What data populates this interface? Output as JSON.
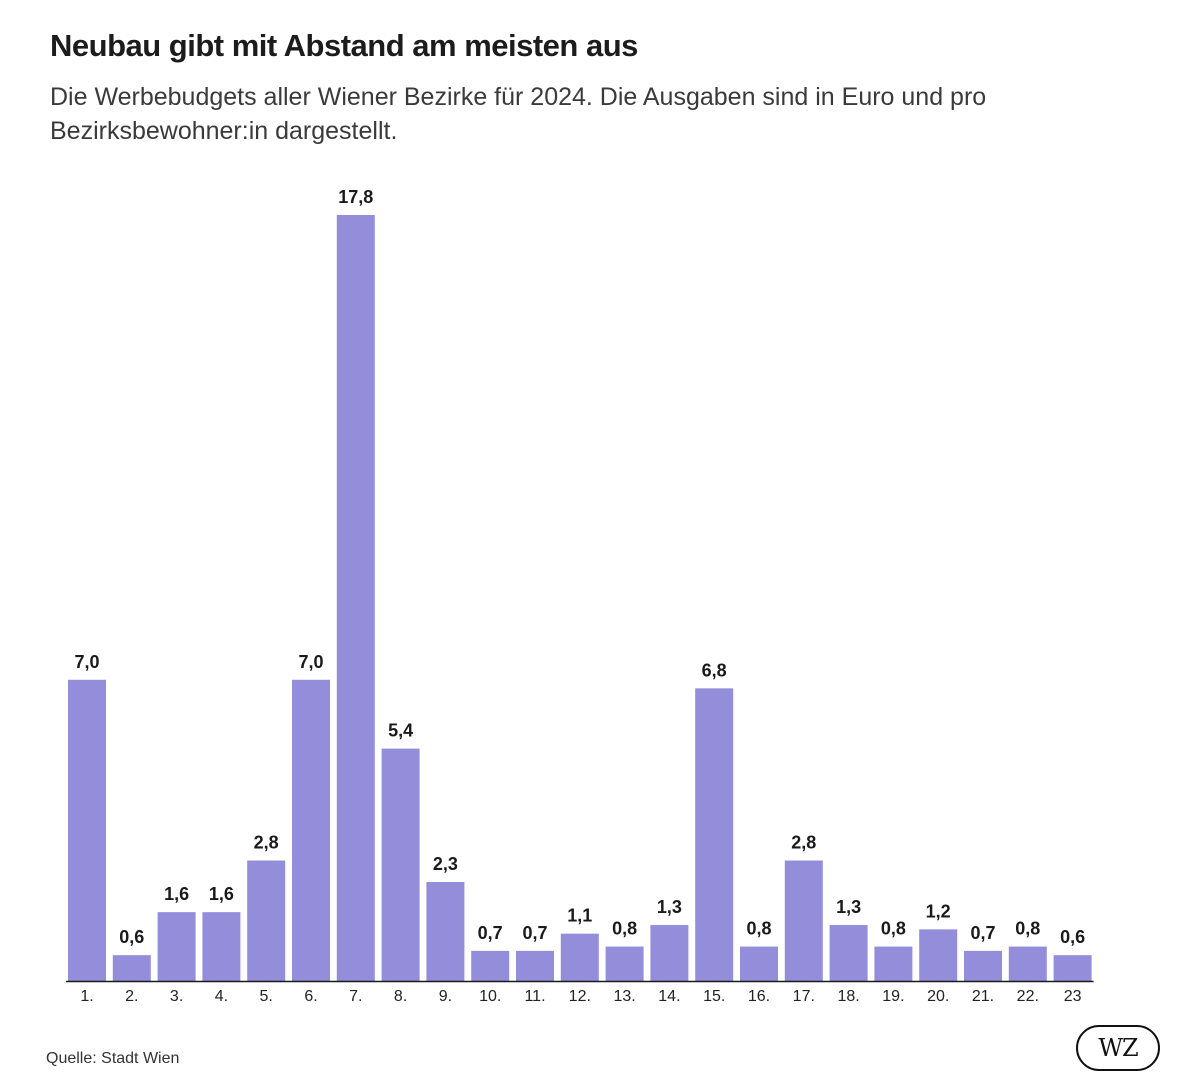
{
  "header": {
    "title": "Neubau gibt mit Abstand am meisten aus",
    "subtitle": "Die Werbebudgets aller Wiener Bezirke für 2024. Die Ausgaben sind in Euro und pro Bezirksbewohner:in dargestellt."
  },
  "footer": {
    "source": "Quelle: Stadt Wien",
    "logo": "WZ"
  },
  "colors": {
    "bar": "#938dda",
    "baseline": "#1a1a1a",
    "label": "#1a1a1a"
  },
  "chart_data": {
    "type": "bar",
    "title": "Neubau gibt mit Abstand am meisten aus",
    "subtitle": "Die Werbebudgets aller Wiener Bezirke für 2024. Die Ausgaben sind in Euro und pro Bezirksbewohner:in dargestellt.",
    "xlabel": "",
    "ylabel": "",
    "categories": [
      "1.",
      "2.",
      "3.",
      "4.",
      "5.",
      "6.",
      "7.",
      "8.",
      "9.",
      "10.",
      "11.",
      "12.",
      "13.",
      "14.",
      "15.",
      "16.",
      "17.",
      "18.",
      "19.",
      "20.",
      "21.",
      "22.",
      "23"
    ],
    "values": [
      7.0,
      0.6,
      1.6,
      1.6,
      2.8,
      7.0,
      17.8,
      5.4,
      2.3,
      0.7,
      0.7,
      1.1,
      0.8,
      1.3,
      6.8,
      0.8,
      2.8,
      1.3,
      0.8,
      1.2,
      0.7,
      0.8,
      0.6
    ],
    "value_labels": [
      "7,0",
      "0,6",
      "1,6",
      "1,6",
      "2,8",
      "7,0",
      "17,8",
      "5,4",
      "2,3",
      "0,7",
      "0,7",
      "1,1",
      "0,8",
      "1,3",
      "6,8",
      "0,8",
      "2,8",
      "1,3",
      "0,8",
      "1,2",
      "0,7",
      "0,8",
      "0,6"
    ],
    "ylim": [
      0,
      17.8
    ],
    "grid": false,
    "legend": "none"
  }
}
